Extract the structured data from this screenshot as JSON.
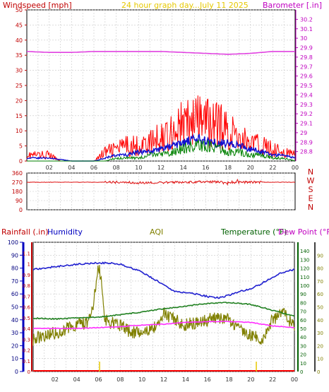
{
  "header": {
    "left_label": "Windspeed [mph]",
    "center_label": "24 hour graph day...July 11 2025",
    "right_label": "Barometer [.in]"
  },
  "colors": {
    "wind_axis": "#c00000",
    "baro_axis": "#c000c0",
    "title": "#e6c800",
    "wind_mean": "#ff0000",
    "wind_avg": "#1010d0",
    "wind_low": "#008000",
    "barometer": "#e040e0",
    "direction": "#e01010",
    "humidity": "#2020d0",
    "aqi": "#808000",
    "temperature": "#208020",
    "dewpoint": "#ff30ff",
    "rainfall_axis": "#c00000",
    "humidity_axis": "#0000c0",
    "temp_axis": "#006000",
    "grid": "#c8c8c8"
  },
  "chart_data": [
    {
      "type": "line",
      "title": "24 hour graph day...July 11 2025",
      "x_ticks": [
        "02",
        "04",
        "06",
        "08",
        "10",
        "12",
        "14",
        "16",
        "18",
        "20",
        "22",
        "00"
      ],
      "xlim": [
        0,
        24
      ],
      "ylabel_left": "Windspeed [mph]",
      "ylim_left": [
        0,
        50
      ],
      "yticks_left": [
        0,
        5,
        10,
        15,
        20,
        25,
        30,
        35,
        40,
        45,
        50
      ],
      "ylabel_right": "Barometer [.in]",
      "ylim_right": [
        28.7,
        30.3
      ],
      "yticks_right": [
        "28.8",
        "28.9",
        "29",
        "29.1",
        "29.2",
        "29.3",
        "29.4",
        "29.5",
        "29.6",
        "29.7",
        "29.8",
        "29.9",
        "30",
        "30.1",
        "30.2"
      ],
      "grid": true,
      "series": [
        {
          "color": "red",
          "x": [
            0,
            1,
            2,
            3,
            4,
            5,
            6,
            7,
            8,
            9,
            10,
            11,
            12,
            13,
            14,
            15,
            16,
            17,
            18,
            19,
            20,
            21,
            22,
            23,
            24
          ],
          "values": [
            2,
            2,
            2,
            0,
            0,
            0,
            0,
            3,
            4,
            5,
            5,
            6,
            8,
            10,
            12,
            13,
            13,
            12,
            10,
            8,
            6,
            5,
            4,
            3,
            2
          ]
        },
        {
          "color": "blue",
          "x": [
            0,
            2,
            4,
            6,
            7,
            8,
            9,
            10,
            11,
            12,
            13,
            14,
            15,
            16,
            17,
            18,
            19,
            20,
            21,
            22,
            23,
            24
          ],
          "values": [
            1,
            1,
            0,
            0,
            1,
            2,
            2,
            3,
            3,
            4,
            5,
            6,
            7,
            7,
            6,
            6,
            5,
            4,
            3,
            2,
            2,
            1
          ]
        },
        {
          "color": "green",
          "x": [
            0,
            2,
            4,
            6,
            7,
            8,
            9,
            10,
            11,
            12,
            13,
            14,
            15,
            16,
            17,
            18,
            19,
            20,
            21,
            22,
            23,
            24
          ],
          "values": [
            0,
            0,
            0,
            0,
            0,
            1,
            1,
            1,
            2,
            2,
            3,
            4,
            5,
            5,
            4,
            3,
            3,
            2,
            2,
            1,
            1,
            0
          ]
        },
        {
          "color": "magenta",
          "axis": "right",
          "x": [
            0,
            2,
            4,
            6,
            8,
            10,
            12,
            14,
            16,
            18,
            20,
            22,
            24
          ],
          "values": [
            29.86,
            29.85,
            29.85,
            29.86,
            29.86,
            29.86,
            29.86,
            29.85,
            29.84,
            29.83,
            29.84,
            29.86,
            29.86
          ]
        }
      ]
    },
    {
      "type": "line",
      "x_ticks": [
        "02",
        "04",
        "06",
        "08",
        "10",
        "12",
        "14",
        "16",
        "18",
        "20",
        "22",
        "00"
      ],
      "xlim": [
        0,
        24
      ],
      "ylim": [
        0,
        360
      ],
      "yticks": [
        0,
        90,
        180,
        270,
        360
      ],
      "ytick_labels": [
        "0",
        "90",
        "180",
        "270",
        "360"
      ],
      "compass_labels": [
        "N",
        "W",
        "S",
        "E",
        "N"
      ],
      "grid": true,
      "series": [
        {
          "color": "red",
          "x": [
            0,
            2,
            4,
            6,
            8,
            10,
            12,
            14,
            16,
            18,
            20,
            22,
            24
          ],
          "values": [
            270,
            270,
            270,
            270,
            270,
            265,
            265,
            270,
            275,
            270,
            270,
            270,
            270
          ]
        }
      ]
    },
    {
      "type": "line",
      "x_ticks": [
        "02",
        "04",
        "06",
        "08",
        "10",
        "12",
        "14",
        "16",
        "18",
        "20",
        "22",
        "00"
      ],
      "xlim": [
        0,
        24
      ],
      "ylabel_left": "Rainfall (.in)",
      "ylim_rain": [
        0,
        1.2
      ],
      "yticks_rain": [
        "0",
        "0.1",
        "0.2",
        "0.3",
        "0.4",
        "0.5",
        "0.6",
        "0.7",
        "0.8",
        "0.9",
        "1",
        "1.1"
      ],
      "ylabel_humidity": "Humidity",
      "ylim_humidity": [
        0,
        100
      ],
      "yticks_humidity": [
        0,
        10,
        20,
        30,
        40,
        50,
        60,
        70,
        80,
        90,
        100
      ],
      "label_aqi": "AQI",
      "ylabel_right": "Temperature (°F)",
      "ylabel_right2": "Dew Point (°F)",
      "ylim_temp": [
        0,
        150
      ],
      "yticks_temp": [
        0,
        10,
        20,
        30,
        40,
        50,
        60,
        70,
        80,
        90,
        100,
        110,
        120,
        130,
        140
      ],
      "ylim_aqi": [
        0,
        100
      ],
      "yticks_aqi": [
        0,
        10,
        20,
        30,
        40,
        50,
        60,
        70,
        80,
        90
      ],
      "grid": true,
      "series": [
        {
          "color": "blue",
          "x": [
            0,
            2,
            4,
            6,
            7,
            8,
            9,
            10,
            11,
            12,
            13,
            14,
            15,
            16,
            17,
            18,
            19,
            20,
            21,
            22,
            23,
            24
          ],
          "values": [
            79,
            81,
            83,
            84,
            84,
            83,
            80,
            77,
            72,
            67,
            62,
            61,
            60,
            58,
            57,
            59,
            62,
            64,
            68,
            73,
            77,
            79
          ]
        },
        {
          "color": "olive",
          "x": [
            0,
            1,
            2,
            3,
            4,
            5,
            5.5,
            6,
            6.3,
            6.6,
            7,
            8,
            9,
            10,
            11,
            12,
            13,
            14,
            15,
            16,
            17,
            18,
            19,
            20,
            21,
            22,
            23,
            24
          ],
          "values": [
            25,
            28,
            30,
            33,
            36,
            38,
            50,
            82,
            70,
            40,
            38,
            36,
            30,
            32,
            33,
            45,
            40,
            36,
            38,
            40,
            42,
            40,
            32,
            28,
            25,
            40,
            45,
            35
          ]
        },
        {
          "color": "green",
          "x": [
            0,
            2,
            4,
            6,
            8,
            10,
            12,
            14,
            16,
            18,
            20,
            22,
            24
          ],
          "values": [
            62,
            61,
            62,
            63,
            66,
            69,
            73,
            76,
            79,
            80,
            78,
            71,
            64
          ]
        },
        {
          "color": "magenta",
          "x": [
            0,
            2,
            4,
            6,
            8,
            10,
            12,
            14,
            16,
            18,
            20,
            22,
            24
          ],
          "values": [
            50,
            50,
            50,
            51,
            52,
            54,
            55,
            57,
            58,
            58,
            57,
            53,
            51
          ]
        }
      ],
      "rain_events": [
        {
          "x": 6.1,
          "value": 0.01
        },
        {
          "x": 20.5,
          "value": 0.01
        }
      ]
    }
  ]
}
